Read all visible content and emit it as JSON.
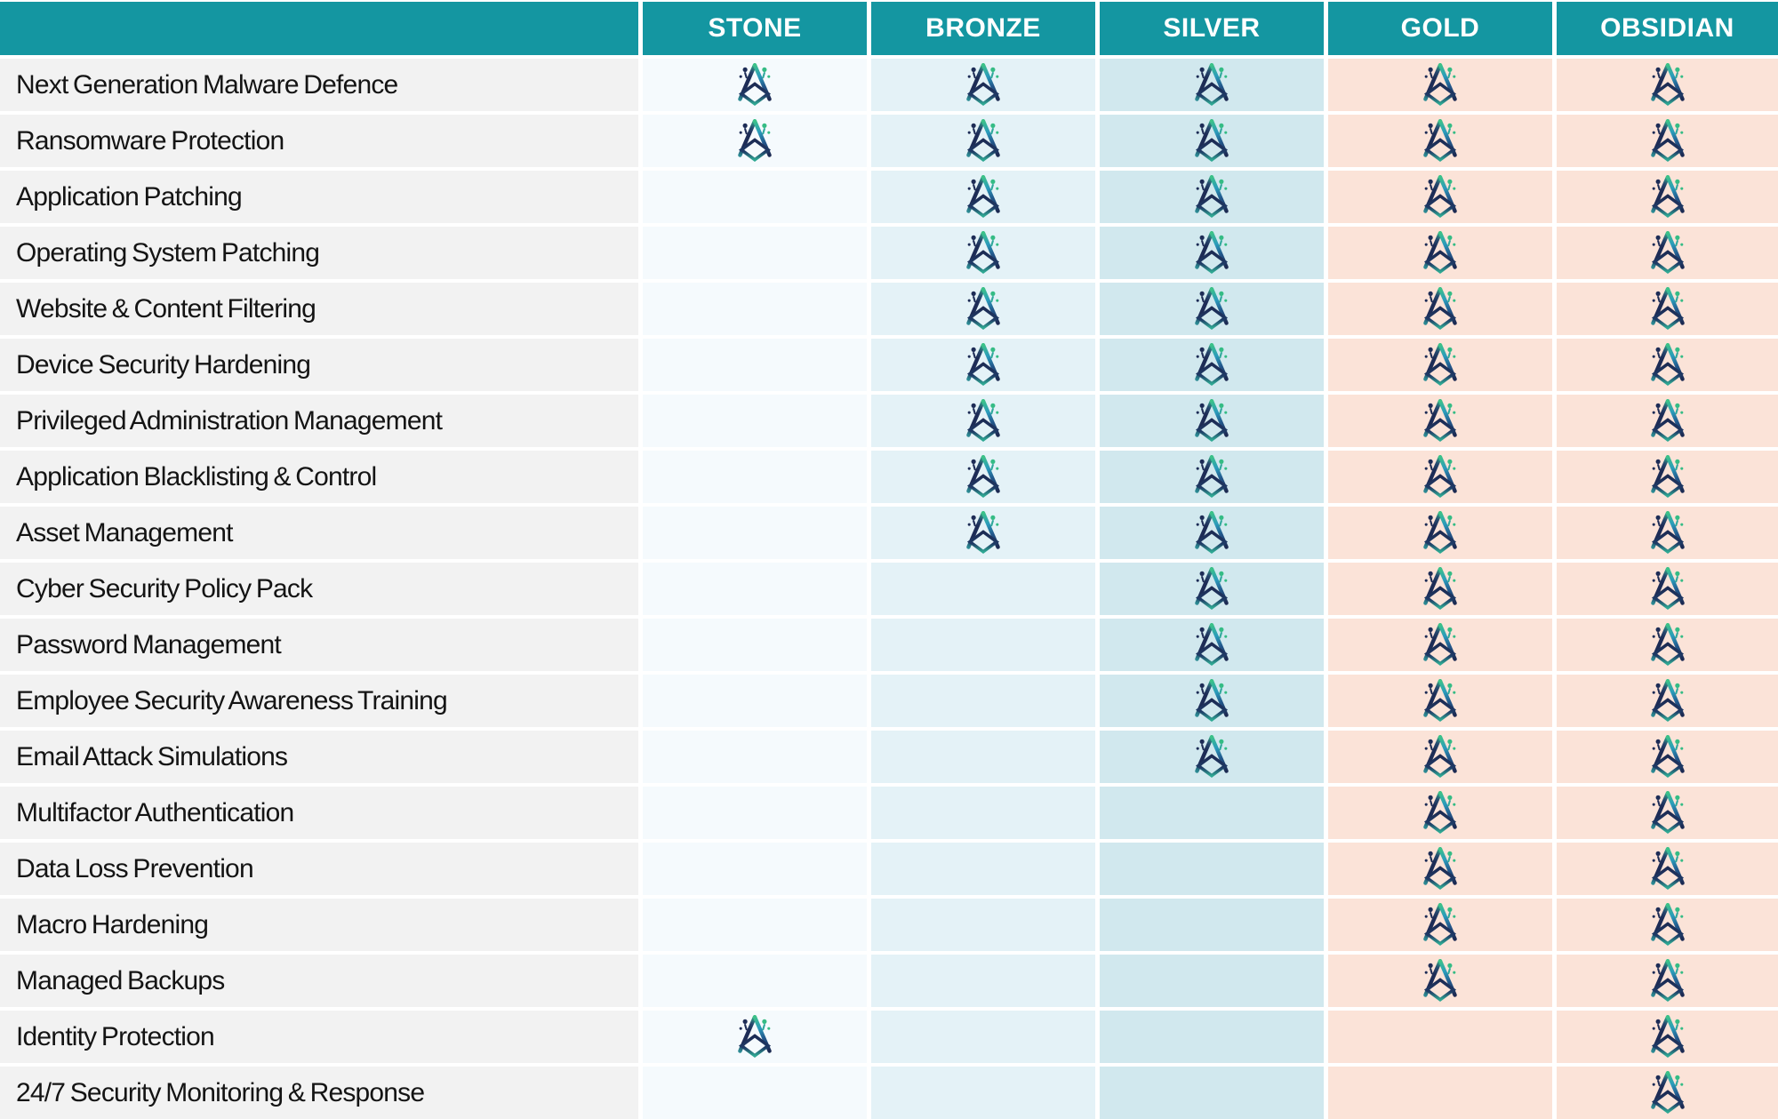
{
  "header": {
    "tiers": [
      {
        "id": "stone",
        "label": "STONE"
      },
      {
        "id": "bronze",
        "label": "BRONZE"
      },
      {
        "id": "silver",
        "label": "SILVER"
      },
      {
        "id": "gold",
        "label": "GOLD"
      },
      {
        "id": "obsidian",
        "label": "OBSIDIAN"
      }
    ]
  },
  "features": [
    {
      "label": "Next Generation Malware Defence",
      "tiers": [
        true,
        true,
        true,
        true,
        true
      ]
    },
    {
      "label": "Ransomware Protection",
      "tiers": [
        true,
        true,
        true,
        true,
        true
      ]
    },
    {
      "label": "Application Patching",
      "tiers": [
        false,
        true,
        true,
        true,
        true
      ]
    },
    {
      "label": "Operating System Patching",
      "tiers": [
        false,
        true,
        true,
        true,
        true
      ]
    },
    {
      "label": "Website & Content Filtering",
      "tiers": [
        false,
        true,
        true,
        true,
        true
      ]
    },
    {
      "label": "Device Security Hardening",
      "tiers": [
        false,
        true,
        true,
        true,
        true
      ]
    },
    {
      "label": "Privileged Administration Management",
      "tiers": [
        false,
        true,
        true,
        true,
        true
      ]
    },
    {
      "label": "Application Blacklisting & Control",
      "tiers": [
        false,
        true,
        true,
        true,
        true
      ]
    },
    {
      "label": "Asset Management",
      "tiers": [
        false,
        true,
        true,
        true,
        true
      ]
    },
    {
      "label": "Cyber Security Policy Pack",
      "tiers": [
        false,
        false,
        true,
        true,
        true
      ]
    },
    {
      "label": "Password Management",
      "tiers": [
        false,
        false,
        true,
        true,
        true
      ]
    },
    {
      "label": "Employee Security Awareness Training",
      "tiers": [
        false,
        false,
        true,
        true,
        true
      ]
    },
    {
      "label": "Email Attack Simulations",
      "tiers": [
        false,
        false,
        true,
        true,
        true
      ]
    },
    {
      "label": "Multifactor Authentication",
      "tiers": [
        false,
        false,
        false,
        true,
        true
      ]
    },
    {
      "label": "Data Loss Prevention",
      "tiers": [
        false,
        false,
        false,
        true,
        true
      ]
    },
    {
      "label": "Macro Hardening",
      "tiers": [
        false,
        false,
        false,
        true,
        true
      ]
    },
    {
      "label": "Managed Backups",
      "tiers": [
        false,
        false,
        false,
        true,
        true
      ]
    },
    {
      "label": "Identity Protection",
      "tiers": [
        true,
        false,
        false,
        false,
        true
      ]
    },
    {
      "label": "24/7 Security Monitoring & Response",
      "tiers": [
        false,
        false,
        false,
        false,
        true
      ]
    }
  ],
  "inclusion_mark": {
    "icon_name": "triangle-a-logo-icon",
    "meaning": "feature included in tier"
  },
  "colors": {
    "header-bg": "#1496A1",
    "header-text": "#FFFFFF",
    "label-bg": "#F2F2F2",
    "label-text": "#141414",
    "stone-bg": "#F5FAFD",
    "bronze-bg": "#E4F2F7",
    "silver-bg": "#D1E8EE",
    "gold-bg": "#FBE3D8",
    "obsidian-bg": "#FBE3D8",
    "logo-navy": "#1D2C56",
    "logo-green": "#35BC85",
    "logo-cyan": "#2B9CBC"
  },
  "chart_data": {
    "type": "table",
    "title": "",
    "columns": [
      "STONE",
      "BRONZE",
      "SILVER",
      "GOLD",
      "OBSIDIAN"
    ],
    "rows": [
      {
        "feature": "Next Generation Malware Defence",
        "included": [
          1,
          1,
          1,
          1,
          1
        ]
      },
      {
        "feature": "Ransomware Protection",
        "included": [
          1,
          1,
          1,
          1,
          1
        ]
      },
      {
        "feature": "Application Patching",
        "included": [
          0,
          1,
          1,
          1,
          1
        ]
      },
      {
        "feature": "Operating System Patching",
        "included": [
          0,
          1,
          1,
          1,
          1
        ]
      },
      {
        "feature": "Website & Content Filtering",
        "included": [
          0,
          1,
          1,
          1,
          1
        ]
      },
      {
        "feature": "Device Security Hardening",
        "included": [
          0,
          1,
          1,
          1,
          1
        ]
      },
      {
        "feature": "Privileged Administration Management",
        "included": [
          0,
          1,
          1,
          1,
          1
        ]
      },
      {
        "feature": "Application Blacklisting & Control",
        "included": [
          0,
          1,
          1,
          1,
          1
        ]
      },
      {
        "feature": "Asset Management",
        "included": [
          0,
          1,
          1,
          1,
          1
        ]
      },
      {
        "feature": "Cyber Security Policy Pack",
        "included": [
          0,
          0,
          1,
          1,
          1
        ]
      },
      {
        "feature": "Password Management",
        "included": [
          0,
          0,
          1,
          1,
          1
        ]
      },
      {
        "feature": "Employee Security Awareness Training",
        "included": [
          0,
          0,
          1,
          1,
          1
        ]
      },
      {
        "feature": "Email Attack Simulations",
        "included": [
          0,
          0,
          1,
          1,
          1
        ]
      },
      {
        "feature": "Multifactor Authentication",
        "included": [
          0,
          0,
          0,
          1,
          1
        ]
      },
      {
        "feature": "Data Loss Prevention",
        "included": [
          0,
          0,
          0,
          1,
          1
        ]
      },
      {
        "feature": "Macro Hardening",
        "included": [
          0,
          0,
          0,
          1,
          1
        ]
      },
      {
        "feature": "Managed Backups",
        "included": [
          0,
          0,
          0,
          1,
          1
        ]
      },
      {
        "feature": "Identity Protection",
        "included": [
          1,
          0,
          0,
          0,
          1
        ]
      },
      {
        "feature": "24/7 Security Monitoring & Response",
        "included": [
          0,
          0,
          0,
          0,
          1
        ]
      }
    ],
    "legend": "cell mark = triangle-a logo; column tints: stone pale blue, bronze light cyan, silver light teal, gold/obsidian pale peach"
  }
}
